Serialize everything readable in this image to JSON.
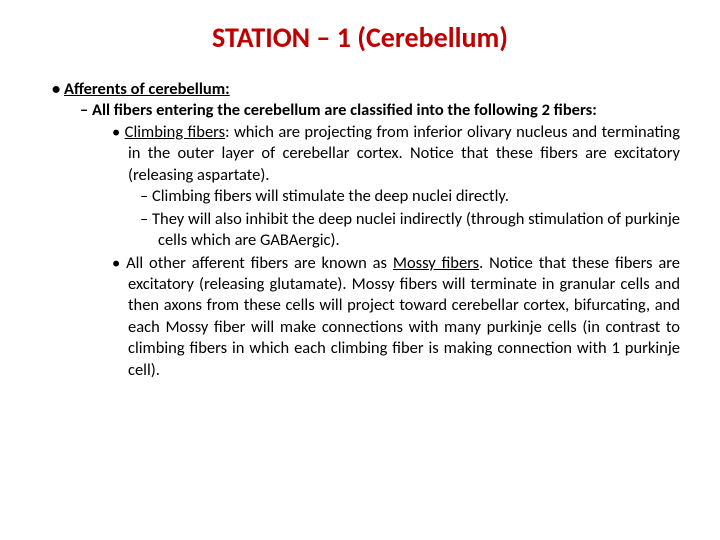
{
  "title": "STATION – 1 (Cerebellum)",
  "section_heading": "Afferents of cerebellum:",
  "intro": "All fibers entering the cerebellum are classified into the following 2 fibers:",
  "climbing_label": "Climbing fibers",
  "climbing_text": ": which are projecting from inferior olivary nucleus and terminating in the outer layer of cerebellar cortex. Notice that these fibers are excitatory (releasing aspartate).",
  "climbing_sub1": "Climbing fibers will stimulate the deep nuclei directly.",
  "climbing_sub2": "They will also inhibit the deep nuclei indirectly (through stimulation of purkinje cells which are GABAergic).",
  "mossy_pre": "All other afferent fibers are known as ",
  "mossy_label": "Mossy fibers",
  "mossy_text": ". Notice that these fibers are excitatory (releasing glutamate). Mossy fibers will terminate in granular cells and then axons from these cells will project toward cerebellar cortex, bifurcating, and each Mossy fiber will make connections with many purkinje cells (in contrast to climbing fibers in which each climbing fiber is making connection with 1 purkinje cell).",
  "colors": {
    "title": "#c00000",
    "text": "#000000",
    "background": "#ffffff"
  },
  "typography": {
    "title_fontsize": 28,
    "body_fontsize": 16.5,
    "font_family": "Calibri"
  }
}
